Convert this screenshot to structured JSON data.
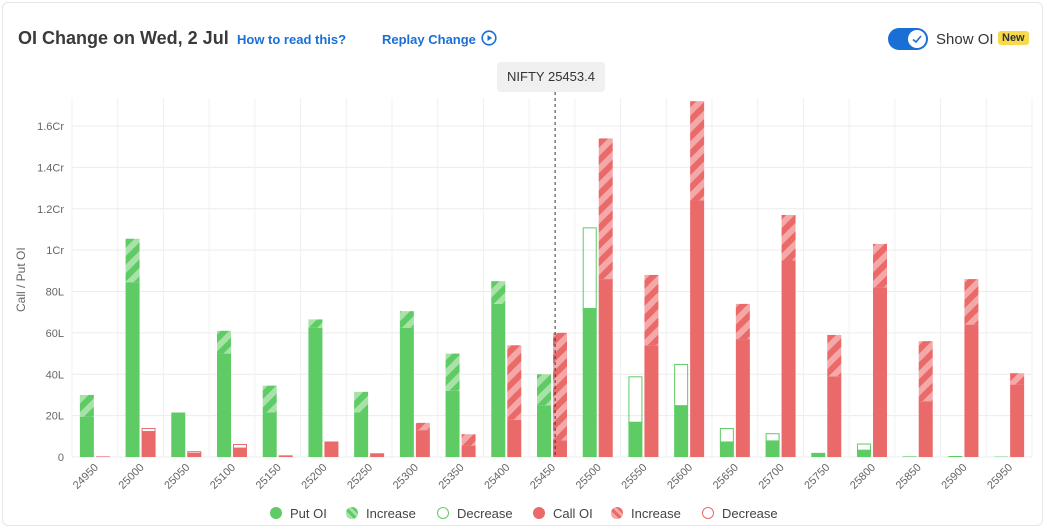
{
  "header": {
    "title": "OI Change on Wed, 2 Jul",
    "how_link": "How to read this?",
    "replay_link": "Replay Change",
    "toggle_label": "Show OI",
    "new_badge": "New"
  },
  "spot": {
    "label": "NIFTY 25453.4"
  },
  "colors": {
    "put": "#5ecb65",
    "put_light": "#a8e2a9",
    "call": "#ea6969",
    "call_light": "#f5a8a8",
    "accent": "#1a6fd6"
  },
  "chart_data": {
    "type": "bar",
    "ylabel": "Call / Put OI",
    "ylim": [
      0,
      17500000
    ],
    "yticks": [
      0,
      2000000,
      4000000,
      6000000,
      8000000,
      10000000,
      12000000,
      14000000,
      16000000
    ],
    "ytick_labels": [
      "0",
      "20L",
      "40L",
      "60L",
      "80L",
      "1Cr",
      "1.2Cr",
      "1.4Cr",
      "1.6Cr"
    ],
    "spot_value": 25453.4,
    "categories": [
      "24950",
      "25000",
      "25050",
      "25100",
      "25150",
      "25200",
      "25250",
      "25300",
      "25350",
      "25400",
      "25450",
      "25500",
      "25550",
      "25600",
      "25650",
      "25700",
      "25750",
      "25800",
      "25850",
      "25900",
      "25950"
    ],
    "series": [
      {
        "name": "Put OI",
        "values": [
          1950000,
          8450000,
          2150000,
          5000000,
          2150000,
          6250000,
          2150000,
          6250000,
          3200000,
          7400000,
          2500000,
          7200000,
          1700000,
          2500000,
          750000,
          800000,
          200000,
          350000,
          30000,
          50000,
          20000
        ]
      },
      {
        "name": "Increase",
        "values": [
          1050000,
          2100000,
          0,
          1100000,
          1300000,
          400000,
          1000000,
          800000,
          1800000,
          1100000,
          1500000,
          0,
          0,
          0,
          0,
          0,
          0,
          0,
          0,
          0,
          0
        ]
      },
      {
        "name": "Decrease",
        "values": [
          0,
          0,
          0,
          0,
          0,
          0,
          0,
          0,
          0,
          0,
          0,
          3900000,
          2200000,
          2000000,
          650000,
          350000,
          0,
          300000,
          0,
          0,
          0
        ]
      },
      {
        "name": "Call OI",
        "values": [
          30000,
          1250000,
          200000,
          450000,
          80000,
          750000,
          180000,
          1300000,
          550000,
          1800000,
          800000,
          8600000,
          5400000,
          12400000,
          5700000,
          9500000,
          3900000,
          8200000,
          2700000,
          6400000,
          3500000
        ]
      },
      {
        "name": "Increase",
        "values": [
          0,
          0,
          0,
          0,
          0,
          0,
          0,
          350000,
          550000,
          3600000,
          5200000,
          6800000,
          3400000,
          4800000,
          1700000,
          2200000,
          2000000,
          2100000,
          2900000,
          2200000,
          550000
        ]
      },
      {
        "name": "Decrease",
        "values": [
          0,
          150000,
          80000,
          180000,
          0,
          0,
          0,
          0,
          0,
          0,
          0,
          0,
          0,
          0,
          0,
          0,
          0,
          0,
          0,
          0,
          0
        ]
      }
    ]
  },
  "legend": {
    "put_oi": "Put OI",
    "put_increase": "Increase",
    "put_decrease": "Decrease",
    "call_oi": "Call OI",
    "call_increase": "Increase",
    "call_decrease": "Decrease"
  }
}
